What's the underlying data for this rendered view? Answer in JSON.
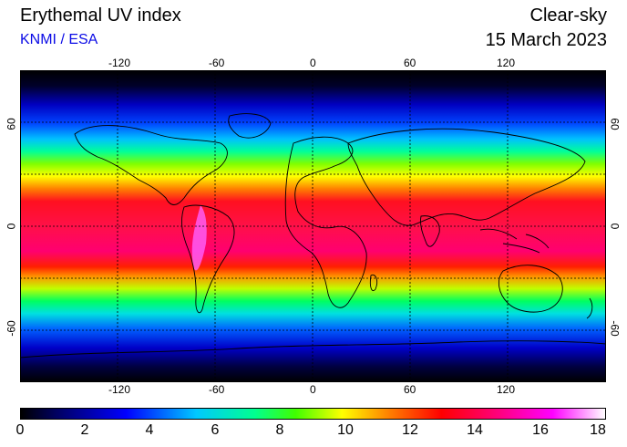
{
  "header": {
    "title": "Erythemal UV index",
    "credit": "KNMI / ESA",
    "condition": "Clear-sky",
    "date": "15 March 2023"
  },
  "map": {
    "lon_ticks": [
      "-120",
      "-60",
      "0",
      "60",
      "120"
    ],
    "lon_values": [
      -120,
      -60,
      0,
      60,
      120
    ],
    "lat_ticks": [
      "60",
      "0",
      "-60"
    ],
    "lat_values": [
      60,
      0,
      -60
    ],
    "lon_range": [
      -180,
      180
    ],
    "lat_range": [
      -90,
      90
    ],
    "gridlines_lat": [
      -60,
      -30,
      0,
      30,
      60
    ],
    "gridlines_lon": [
      -120,
      -60,
      0,
      60,
      120
    ]
  },
  "colorbar": {
    "labels": [
      "0",
      "2",
      "4",
      "6",
      "8",
      "10",
      "12",
      "14",
      "16",
      "18"
    ],
    "min": 0,
    "max": 18,
    "colors": [
      "#000000",
      "#0000a0",
      "#0000ff",
      "#00c8ff",
      "#00ff90",
      "#40ff00",
      "#ffff00",
      "#ff8000",
      "#ff0000",
      "#ff0080",
      "#ff00ff",
      "#ffffff"
    ]
  }
}
